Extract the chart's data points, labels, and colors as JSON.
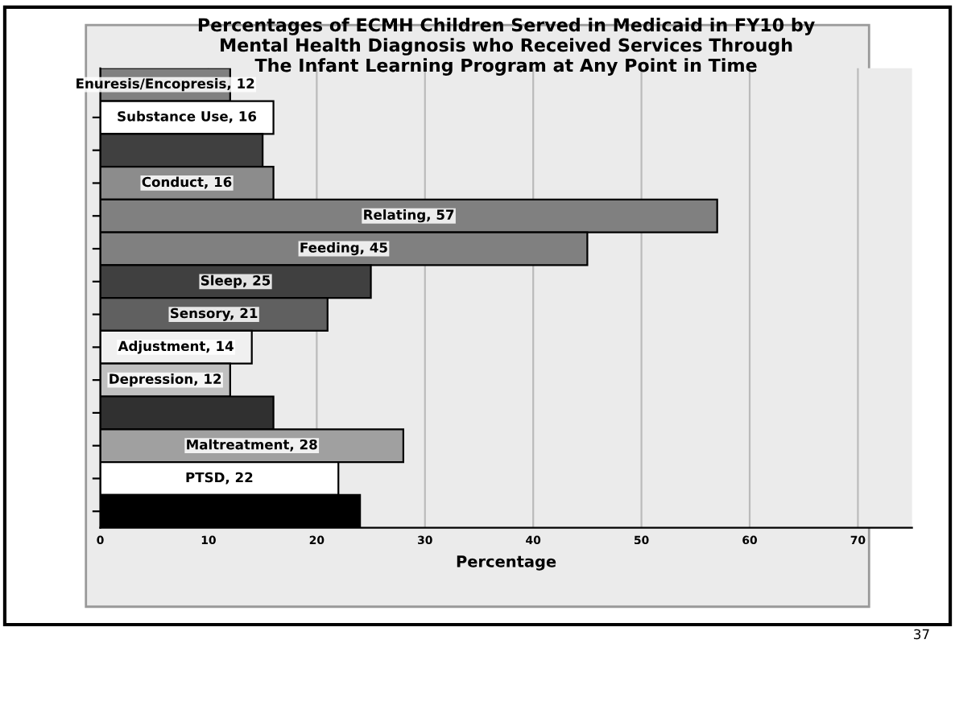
{
  "chart_data": {
    "type": "bar",
    "orientation": "horizontal",
    "title": "Percentages of ECMH Children Served in Medicaid in FY10 by\nMental Health Diagnosis who Received Services Through\nThe Infant Learning Program at Any Point in Time",
    "xlabel": "Percentage",
    "categories": [
      null,
      null,
      null,
      null,
      null,
      null,
      null,
      null,
      null,
      null,
      null,
      null,
      null,
      null
    ],
    "values": [
      12,
      16,
      15,
      16,
      57,
      45,
      25,
      21,
      14,
      12,
      16,
      28,
      22,
      24
    ],
    "value_labels": [
      "Enuresis/Encopresis, 12",
      "Substance Use, 16",
      null,
      "Conduct, 16",
      "Relating, 57",
      "Feeding, 45",
      "Sleep, 25",
      "Sensory, 21",
      "Adjustment, 14",
      "Depression, 12",
      null,
      "Maltreatment, 28",
      "PTSD, 22",
      null
    ],
    "colors": [
      "#808080",
      "#ffffff",
      "#404040",
      "#8c8c8c",
      "#808080",
      "#808080",
      "#404040",
      "#606060",
      "#f0f0f0",
      "#c0c0c0",
      "#303030",
      "#a0a0a0",
      "#ffffff",
      "#000000"
    ],
    "xlim": [
      0,
      75
    ],
    "xticks": [
      0,
      10,
      20,
      30,
      40,
      50,
      60,
      70
    ],
    "grid": "x",
    "annotations": [
      "37"
    ]
  }
}
